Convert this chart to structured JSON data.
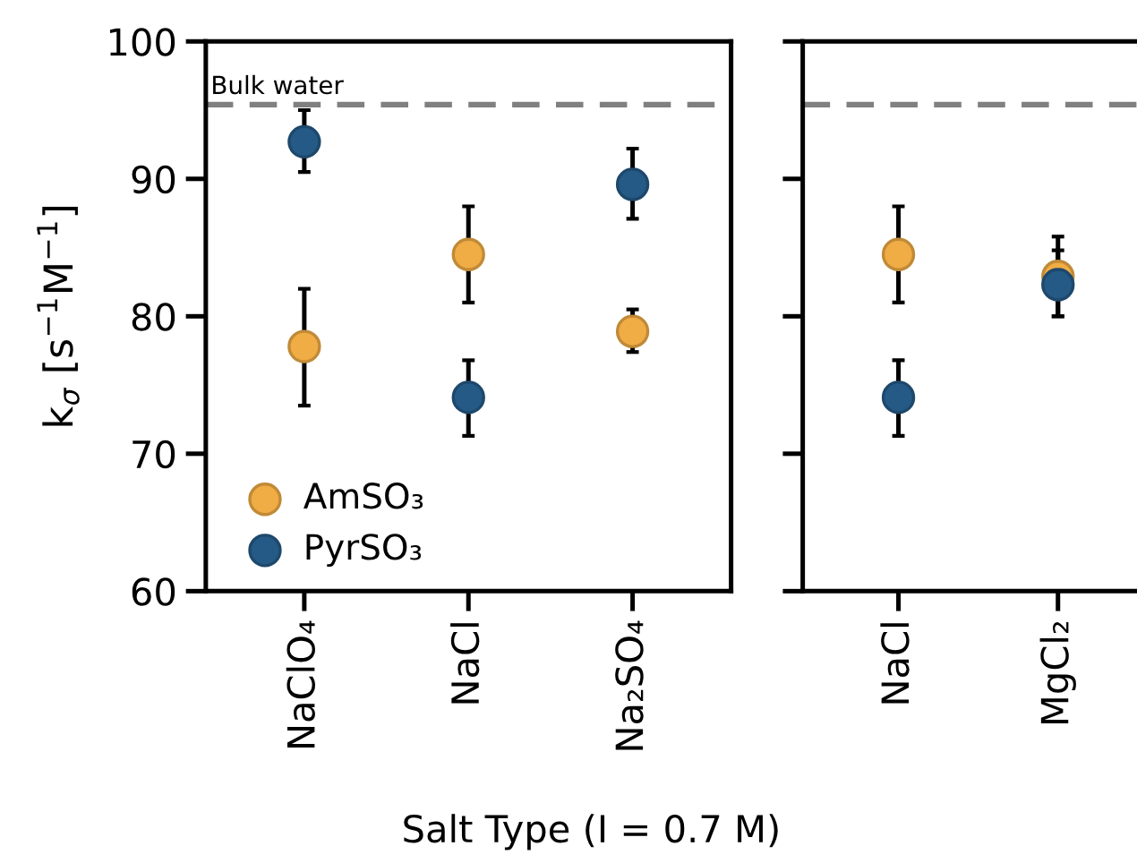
{
  "chart_data": [
    {
      "type": "scatter",
      "xlabel": "Salt Type (I = 0.7 M)",
      "ylabel": "k$_{σ}$ [s$^{−1}$M$^{−1}$]",
      "categories": [
        "NaClO₄",
        "NaCl",
        "Na₂SO₄"
      ],
      "series": [
        {
          "name": "AmSO₃",
          "color": "#f0ac45",
          "values": [
            77.8,
            84.5,
            78.9
          ],
          "errors": [
            [
              73.5,
              82.0
            ],
            [
              81.0,
              88.0
            ],
            [
              77.4,
              80.5
            ]
          ]
        },
        {
          "name": "PyrSO₃",
          "color": "#255a86",
          "values": [
            92.7,
            74.1,
            89.6
          ],
          "errors": [
            [
              90.5,
              95.0
            ],
            [
              71.3,
              76.8
            ],
            [
              87.1,
              92.2
            ]
          ]
        }
      ],
      "ylim": [
        60,
        100
      ],
      "yticks": [
        60,
        70,
        80,
        90,
        100
      ],
      "ref_lines": [
        {
          "axis": "y",
          "value": 95.4,
          "label": "Bulk water",
          "color": "#808080",
          "line_style": "dashed"
        }
      ],
      "legend": "bottom left",
      "marker": "circle",
      "grid": false
    },
    {
      "type": "scatter",
      "categories": [
        "NaCl",
        "MgCl₂"
      ],
      "series": [
        {
          "color": "#f0ac45",
          "values": [
            84.5,
            82.9
          ],
          "errors": [
            [
              81.0,
              88.0
            ],
            [
              80.0,
              85.8
            ]
          ]
        },
        {
          "color": "#255a86",
          "values": [
            74.1,
            82.3
          ],
          "errors": [
            [
              71.3,
              76.8
            ],
            [
              80.0,
              84.8
            ]
          ]
        }
      ],
      "ylim": [
        60,
        100
      ],
      "yticks": [
        60,
        70,
        80,
        90,
        100
      ],
      "tick_labels": "x",
      "ref_lines": [
        {
          "axis": "y",
          "value": 95.4,
          "color": "#808080",
          "line_style": "dashed"
        }
      ],
      "marker": "circle",
      "grid": false
    }
  ]
}
